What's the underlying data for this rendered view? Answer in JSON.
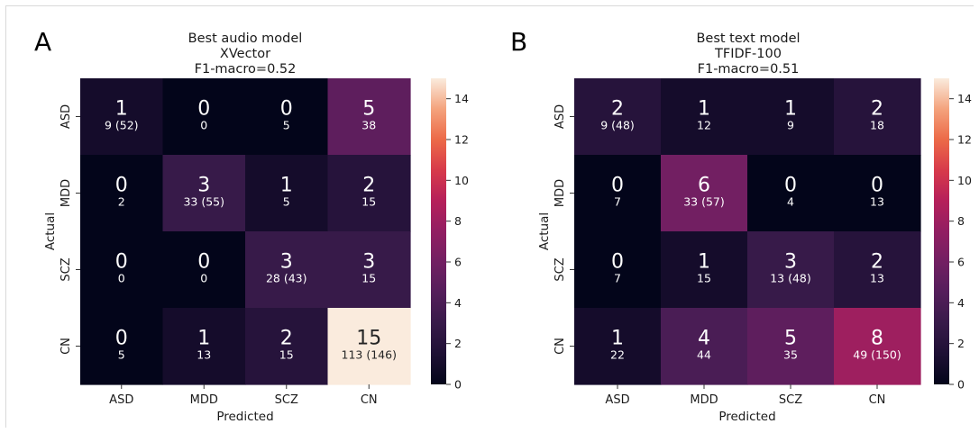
{
  "chart_data": [
    {
      "type": "heatmap",
      "panel_label": "A",
      "title_lines": [
        "Best audio model",
        "XVector",
        "F1-macro=0.52"
      ],
      "xlabel": "Predicted",
      "ylabel": "Actual",
      "categories": [
        "ASD",
        "MDD",
        "SCZ",
        "CN"
      ],
      "values": [
        [
          1,
          0,
          0,
          5
        ],
        [
          0,
          3,
          1,
          2
        ],
        [
          0,
          0,
          3,
          3
        ],
        [
          0,
          1,
          2,
          15
        ]
      ],
      "sublabels": [
        [
          "9 (52)",
          "0",
          "5",
          "38"
        ],
        [
          "2",
          "33 (55)",
          "5",
          "15"
        ],
        [
          "0",
          "0",
          "28 (43)",
          "15"
        ],
        [
          "5",
          "13",
          "15",
          "113 (146)"
        ]
      ],
      "colorbar": {
        "min": 0,
        "max": 15,
        "ticks": [
          0,
          2,
          4,
          6,
          8,
          10,
          12,
          14
        ],
        "colormap": "rocket"
      }
    },
    {
      "type": "heatmap",
      "panel_label": "B",
      "title_lines": [
        "Best text model",
        "TFIDF-100",
        "F1-macro=0.51"
      ],
      "xlabel": "Predicted",
      "ylabel": "Actual",
      "categories": [
        "ASD",
        "MDD",
        "SCZ",
        "CN"
      ],
      "values": [
        [
          2,
          1,
          1,
          2
        ],
        [
          0,
          6,
          0,
          0
        ],
        [
          0,
          1,
          3,
          2
        ],
        [
          1,
          4,
          5,
          8
        ]
      ],
      "sublabels": [
        [
          "9 (48)",
          "12",
          "9",
          "18"
        ],
        [
          "7",
          "33 (57)",
          "4",
          "13"
        ],
        [
          "7",
          "15",
          "13 (48)",
          "13"
        ],
        [
          "22",
          "44",
          "35",
          "49 (150)"
        ]
      ],
      "colorbar": {
        "min": 0,
        "max": 15,
        "ticks": [
          0,
          2,
          4,
          6,
          8,
          10,
          12,
          14
        ],
        "colormap": "rocket"
      }
    }
  ]
}
